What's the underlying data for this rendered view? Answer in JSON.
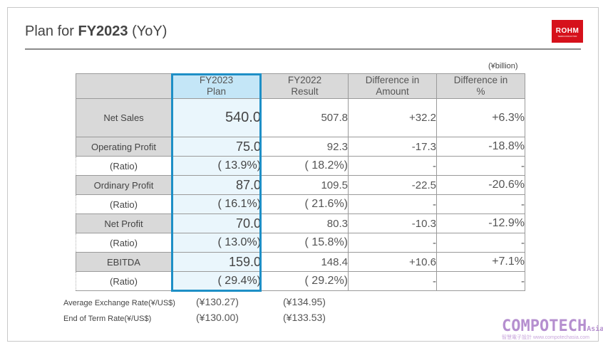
{
  "slide": {
    "title_prefix": "Plan for ",
    "title_bold": "FY2023",
    "title_suffix": " (YoY)",
    "logo_text": "ROHM",
    "logo_sub": "SEMICONDUCTOR",
    "unit": "(¥billion)"
  },
  "table": {
    "headers": {
      "plan_line1": "FY2023",
      "plan_line2": "Plan",
      "result_line1": "FY2022",
      "result_line2": "Result",
      "diff_line1": "Difference in",
      "diff_line2": "Amount",
      "pct_line1": "Difference in",
      "pct_line2": "%"
    },
    "rows": [
      {
        "label": "Net Sales",
        "plan": "540.0",
        "result": "507.8",
        "diff": "+32.2",
        "pct": "+6.3%"
      },
      {
        "label": "Operating Profit",
        "plan": "75.0",
        "result": "92.3",
        "diff": "-17.3",
        "pct": "-18.8%"
      },
      {
        "label": "(Ratio)",
        "plan": "( 13.9%)",
        "result": "( 18.2%)",
        "diff": "-",
        "pct": "-"
      },
      {
        "label": "Ordinary Profit",
        "plan": "87.0",
        "result": "109.5",
        "diff": "-22.5",
        "pct": "-20.6%"
      },
      {
        "label": "(Ratio)",
        "plan": "( 16.1%)",
        "result": "( 21.6%)",
        "diff": "-",
        "pct": "-"
      },
      {
        "label": "Net Profit",
        "plan": "70.0",
        "result": "80.3",
        "diff": "-10.3",
        "pct": "-12.9%"
      },
      {
        "label": "(Ratio)",
        "plan": "( 13.0%)",
        "result": "( 15.8%)",
        "diff": "-",
        "pct": "-"
      },
      {
        "label": "EBITDA",
        "plan": "159.0",
        "result": "148.4",
        "diff": "+10.6",
        "pct": "+7.1%"
      },
      {
        "label": "(Ratio)",
        "plan": "( 29.4%)",
        "result": "( 29.2%)",
        "diff": "-",
        "pct": "-"
      }
    ]
  },
  "rates": {
    "avg_label": "Average Exchange Rate(¥/US$)",
    "avg_plan": "(¥130.27)",
    "avg_result": "(¥134.95)",
    "end_label": "End of Term Rate(¥/US$)",
    "end_plan": "(¥130.00)",
    "end_result": "(¥133.53)"
  },
  "watermark": {
    "main": "COMPOTECH",
    "suffix": "Asia",
    "sub": "智慧電子設計 www.compotechasia.com"
  },
  "colors": {
    "plan_highlight_border": "#1e8fc6",
    "plan_highlight_fill": "#eaf6fc",
    "logo_red": "#d6111b"
  }
}
